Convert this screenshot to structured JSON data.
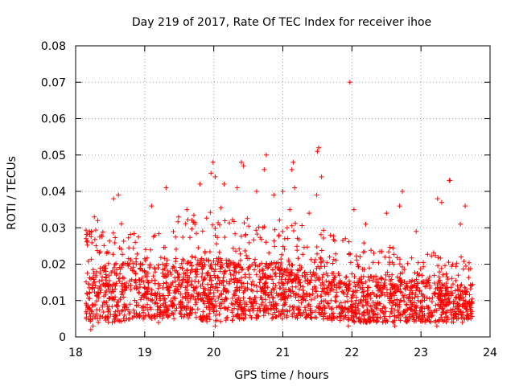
{
  "chart_data": {
    "type": "scatter",
    "title": "Day 219 of 2017, Rate Of TEC Index for receiver ihoe",
    "xlabel": "GPS time / hours",
    "ylabel": "ROTI / TECUs",
    "xlim": [
      18,
      24
    ],
    "ylim": [
      0,
      0.08
    ],
    "xticks": [
      "18",
      "19",
      "20",
      "21",
      "22",
      "23",
      "24"
    ],
    "yticks": [
      "0",
      "0.01",
      "0.02",
      "0.03",
      "0.04",
      "0.05",
      "0.06",
      "0.07",
      "0.08"
    ],
    "grid": true,
    "marker": "+",
    "color": "#ff0000",
    "series": [
      {
        "name": "ROTI",
        "highlight_points": [
          [
            21.97,
            0.07
          ],
          [
            21.52,
            0.052
          ],
          [
            21.5,
            0.051
          ],
          [
            20.76,
            0.05
          ],
          [
            20.73,
            0.046
          ],
          [
            20.4,
            0.048
          ],
          [
            20.43,
            0.047
          ],
          [
            21.15,
            0.048
          ],
          [
            21.13,
            0.046
          ],
          [
            19.99,
            0.048
          ],
          [
            19.96,
            0.045
          ],
          [
            20.02,
            0.044
          ],
          [
            21.56,
            0.044
          ],
          [
            23.42,
            0.043
          ],
          [
            23.41,
            0.043
          ],
          [
            22.73,
            0.04
          ],
          [
            19.31,
            0.041
          ],
          [
            19.8,
            0.042
          ],
          [
            20.15,
            0.042
          ],
          [
            20.34,
            0.041
          ],
          [
            20.62,
            0.04
          ],
          [
            20.87,
            0.039
          ],
          [
            21.0,
            0.04
          ],
          [
            21.17,
            0.041
          ],
          [
            21.49,
            0.039
          ],
          [
            18.62,
            0.039
          ],
          [
            18.55,
            0.038
          ],
          [
            23.24,
            0.038
          ],
          [
            23.3,
            0.037
          ],
          [
            22.03,
            0.035
          ],
          [
            22.5,
            0.034
          ],
          [
            22.69,
            0.036
          ],
          [
            23.64,
            0.036
          ],
          [
            19.1,
            0.036
          ],
          [
            19.61,
            0.035
          ],
          [
            18.27,
            0.033
          ],
          [
            18.32,
            0.032
          ],
          [
            21.1,
            0.035
          ],
          [
            21.38,
            0.034
          ],
          [
            23.57,
            0.031
          ],
          [
            22.2,
            0.031
          ],
          [
            22.93,
            0.029
          ],
          [
            18.2,
            0.029
          ],
          [
            18.15,
            0.027
          ],
          [
            19.49,
            0.033
          ],
          [
            18.22,
            0.002
          ],
          [
            18.25,
            0.003
          ],
          [
            20.02,
            0.003
          ],
          [
            21.95,
            0.003
          ],
          [
            22.21,
            0.004
          ],
          [
            22.62,
            0.003
          ],
          [
            23.23,
            0.003
          ],
          [
            23.6,
            0.004
          ],
          [
            18.53,
            0.004
          ],
          [
            19.2,
            0.004
          ]
        ],
        "band_profile": {
          "x": [
            18.15,
            18.5,
            19.0,
            19.5,
            20.0,
            20.5,
            21.0,
            21.5,
            22.0,
            22.5,
            23.0,
            23.5,
            23.75
          ],
          "low": [
            0.004,
            0.004,
            0.005,
            0.005,
            0.004,
            0.005,
            0.005,
            0.005,
            0.004,
            0.004,
            0.004,
            0.004,
            0.005
          ],
          "high": [
            0.03,
            0.032,
            0.03,
            0.032,
            0.036,
            0.034,
            0.032,
            0.03,
            0.027,
            0.025,
            0.024,
            0.023,
            0.02
          ],
          "typical": [
            0.013,
            0.014,
            0.014,
            0.014,
            0.015,
            0.015,
            0.014,
            0.013,
            0.012,
            0.011,
            0.011,
            0.01,
            0.01
          ]
        },
        "x_range": [
          18.15,
          23.75
        ],
        "point_count": 2400
      }
    ]
  }
}
